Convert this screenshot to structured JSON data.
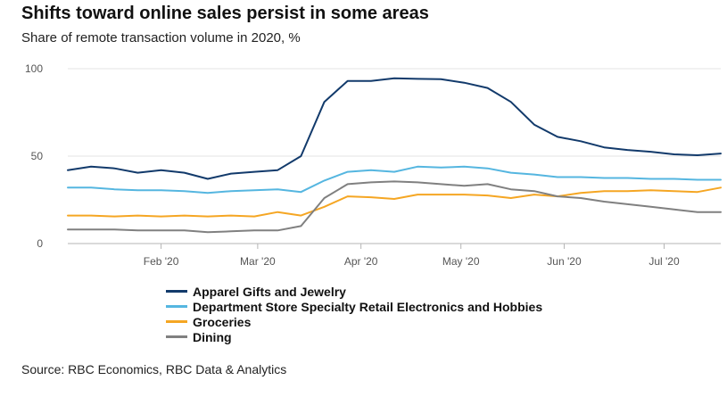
{
  "chart_data": {
    "type": "line",
    "title": "Shifts toward online sales persist in some areas",
    "subtitle": "Share of remote transaction volume in 2020, %",
    "source": "Source: RBC Economics, RBC Data & Analytics",
    "x_unit": "week",
    "x": [
      "2020-01-04",
      "2020-01-11",
      "2020-01-18",
      "2020-01-25",
      "2020-02-01",
      "2020-02-08",
      "2020-02-15",
      "2020-02-22",
      "2020-02-29",
      "2020-03-07",
      "2020-03-14",
      "2020-03-21",
      "2020-03-28",
      "2020-04-04",
      "2020-04-11",
      "2020-04-18",
      "2020-04-25",
      "2020-05-02",
      "2020-05-09",
      "2020-05-16",
      "2020-05-23",
      "2020-05-30",
      "2020-06-06",
      "2020-06-13",
      "2020-06-20",
      "2020-06-27",
      "2020-07-04",
      "2020-07-11",
      "2020-07-18"
    ],
    "x_ticks": [
      {
        "date": "2020-02-01",
        "label": "Feb '20"
      },
      {
        "date": "2020-03-01",
        "label": "Mar '20"
      },
      {
        "date": "2020-04-01",
        "label": "Apr '20"
      },
      {
        "date": "2020-05-01",
        "label": "May '20"
      },
      {
        "date": "2020-06-01",
        "label": "Jun '20"
      },
      {
        "date": "2020-07-01",
        "label": "Jul '20"
      }
    ],
    "xlim": [
      "2020-01-04",
      "2020-07-18"
    ],
    "ylim": [
      0,
      100
    ],
    "y_ticks": [
      0,
      50,
      100
    ],
    "grid": true,
    "legend_position": "bottom",
    "series": [
      {
        "name": "Apparel Gifts and Jewelry",
        "color": "#123a6b",
        "values": [
          42,
          44,
          43,
          40.5,
          42,
          40.5,
          37,
          40,
          41,
          42,
          50,
          81,
          93,
          93,
          94.5,
          94.2,
          94,
          92,
          89,
          81,
          68,
          61,
          58.5,
          55,
          53.5,
          52.5,
          51,
          50.5,
          51.5
        ]
      },
      {
        "name": "Department Store Specialty Retail Electronics and Hobbies",
        "color": "#55b6e0",
        "values": [
          32,
          32,
          31,
          30.5,
          30.5,
          30,
          29,
          30,
          30.5,
          31,
          29.5,
          36,
          41,
          42,
          41,
          44,
          43.5,
          44,
          43,
          40.5,
          39.5,
          38,
          38,
          37.5,
          37.5,
          37,
          37,
          36.5,
          36.5
        ]
      },
      {
        "name": "Groceries",
        "color": "#f5a623",
        "values": [
          16,
          16,
          15.5,
          16,
          15.5,
          16,
          15.5,
          16,
          15.5,
          18,
          16,
          21,
          27,
          26.5,
          25.5,
          28,
          28,
          28,
          27.5,
          26,
          28,
          27,
          29,
          30,
          30,
          30.5,
          30,
          29.5,
          32
        ]
      },
      {
        "name": "Dining",
        "color": "#808080",
        "values": [
          8,
          8,
          8,
          7.5,
          7.5,
          7.5,
          6.5,
          7,
          7.5,
          7.5,
          10,
          26,
          34,
          35,
          35.5,
          35,
          34,
          33,
          34,
          31,
          30,
          27,
          26,
          24,
          22.5,
          21,
          19.5,
          18,
          18
        ]
      }
    ]
  }
}
